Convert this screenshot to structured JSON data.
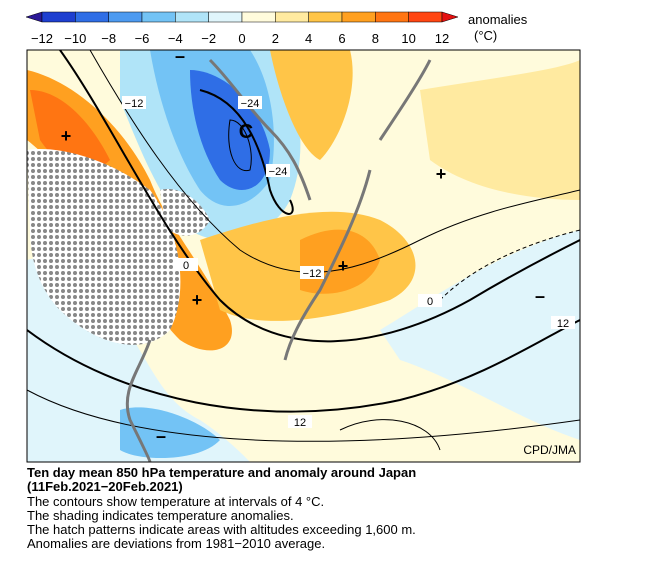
{
  "legend": {
    "title": "anomalies",
    "unit": "(°C)",
    "ticks": [
      "−12",
      "−10",
      "−8",
      "−6",
      "−4",
      "−2",
      "0",
      "2",
      "4",
      "6",
      "8",
      "10",
      "12"
    ],
    "colors": [
      "#2b1896",
      "#1e3fd0",
      "#2f6ee6",
      "#4d9af0",
      "#73c3f5",
      "#b0e4f8",
      "#e0f5fb",
      "#fffbdc",
      "#ffeaa0",
      "#ffc548",
      "#ffa020",
      "#ff7512",
      "#ff4612",
      "#e41010"
    ]
  },
  "map": {
    "contour_labels": [
      "−12",
      "−24",
      "−24",
      "0",
      "−12",
      "0",
      "12",
      "12"
    ],
    "markers": [
      "C",
      "+",
      "+",
      "+",
      "+",
      "–",
      "–",
      "–"
    ],
    "credit": "CPD/JMA"
  },
  "caption": {
    "title": [
      "Ten day mean 850 hPa temperature and anomaly around Japan",
      "(11Feb.2021−20Feb.2021)"
    ],
    "lines": [
      "The contours show temperature at intervals of 4 °C.",
      "The shading indicates temperature anomalies.",
      "The hatch patterns indicate areas with altitudes exceeding 1,600 m.",
      "Anomalies are deviations from 1981−2010 average."
    ]
  }
}
